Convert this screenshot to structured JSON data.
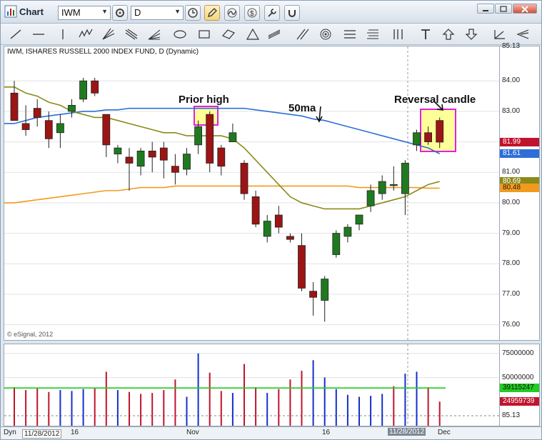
{
  "window": {
    "title": "Chart"
  },
  "toolbar": {
    "symbol_value": "IWM",
    "interval_value": "D"
  },
  "chart_header": "IWM, ISHARES RUSSELL 2000 INDEX FUND, D (Dynamic)",
  "copyright": "© eSignal, 2012",
  "price_axis": {
    "ticks": [
      "85.13",
      "84.00",
      "83.00",
      "81.00",
      "80.00",
      "79.00",
      "78.00",
      "77.00",
      "76.00"
    ],
    "tags": [
      {
        "text": "81.99",
        "color": "#c0142c",
        "textcolor": "#ffffff"
      },
      {
        "text": "81.61",
        "color": "#2d6fd6",
        "textcolor": "#ffffff"
      },
      {
        "text": "80.69",
        "color": "#8a8a1a",
        "textcolor": "#ffffff"
      },
      {
        "text": "80.48",
        "color": "#f29a1e",
        "textcolor": "#222222"
      }
    ]
  },
  "volume_axis": {
    "ticks": [
      "75000000",
      "50000000"
    ],
    "tags": [
      {
        "text": "39115247",
        "color": "#22cc22",
        "textcolor": "#111111"
      },
      {
        "text": "24959739",
        "color": "#c0142c",
        "textcolor": "#ffffff"
      }
    ],
    "bottom": "85.13"
  },
  "time_axis": {
    "left_label": "Dyn",
    "left_date": "11/28/2012",
    "labels": [
      "16",
      "Nov",
      "16",
      "Dec"
    ],
    "cursor_date": "11/28/2012"
  },
  "annotations": {
    "prior_high": "Prior high",
    "ma50": "50ma",
    "reversal": "Reversal candle"
  },
  "colors": {
    "up": "#1f7a1f",
    "down": "#9c1414",
    "ma_short": "#8a8a1a",
    "ma_50": "#2d6fd6",
    "ma_long": "#f29a1e",
    "highlight_fill": "#ffff99",
    "highlight_border": "#e020e0"
  },
  "chart_data": {
    "type": "candlestick",
    "ylim": [
      75.5,
      85.13
    ],
    "candles": [
      {
        "o": 83.6,
        "h": 84.0,
        "l": 82.7,
        "c": 82.7
      },
      {
        "o": 82.6,
        "h": 83.2,
        "l": 82.2,
        "c": 82.4
      },
      {
        "o": 83.1,
        "h": 83.4,
        "l": 82.5,
        "c": 82.8
      },
      {
        "o": 82.7,
        "h": 83.0,
        "l": 81.8,
        "c": 82.1
      },
      {
        "o": 82.3,
        "h": 82.9,
        "l": 81.8,
        "c": 82.6
      },
      {
        "o": 83.0,
        "h": 83.4,
        "l": 82.8,
        "c": 83.2
      },
      {
        "o": 83.4,
        "h": 84.1,
        "l": 83.3,
        "c": 84.0
      },
      {
        "o": 84.0,
        "h": 84.1,
        "l": 83.5,
        "c": 83.6
      },
      {
        "o": 82.9,
        "h": 82.9,
        "l": 81.5,
        "c": 81.9
      },
      {
        "o": 81.6,
        "h": 81.9,
        "l": 81.3,
        "c": 81.8
      },
      {
        "o": 81.5,
        "h": 81.8,
        "l": 80.4,
        "c": 81.3
      },
      {
        "o": 81.2,
        "h": 81.8,
        "l": 80.9,
        "c": 81.7
      },
      {
        "o": 81.7,
        "h": 82.0,
        "l": 81.0,
        "c": 81.5
      },
      {
        "o": 81.8,
        "h": 82.0,
        "l": 80.8,
        "c": 81.4
      },
      {
        "o": 81.2,
        "h": 81.6,
        "l": 80.6,
        "c": 81.0
      },
      {
        "o": 81.1,
        "h": 81.8,
        "l": 80.9,
        "c": 81.6
      },
      {
        "o": 81.9,
        "h": 82.7,
        "l": 81.6,
        "c": 82.5
      },
      {
        "o": 82.9,
        "h": 83.0,
        "l": 81.0,
        "c": 81.3
      },
      {
        "o": 81.8,
        "h": 81.9,
        "l": 80.9,
        "c": 81.2
      },
      {
        "o": 82.0,
        "h": 82.6,
        "l": 82.0,
        "c": 82.3
      },
      {
        "o": 81.3,
        "h": 81.4,
        "l": 80.1,
        "c": 80.3
      },
      {
        "o": 80.2,
        "h": 80.4,
        "l": 79.2,
        "c": 79.3
      },
      {
        "o": 78.9,
        "h": 79.6,
        "l": 78.7,
        "c": 79.4
      },
      {
        "o": 79.6,
        "h": 79.9,
        "l": 79.0,
        "c": 79.2
      },
      {
        "o": 78.9,
        "h": 79.0,
        "l": 78.7,
        "c": 78.8
      },
      {
        "o": 78.6,
        "h": 79.0,
        "l": 77.1,
        "c": 77.2
      },
      {
        "o": 77.1,
        "h": 77.4,
        "l": 76.3,
        "c": 76.9
      },
      {
        "o": 76.8,
        "h": 77.6,
        "l": 76.1,
        "c": 77.5
      },
      {
        "o": 78.3,
        "h": 79.1,
        "l": 78.2,
        "c": 79.0
      },
      {
        "o": 78.9,
        "h": 79.3,
        "l": 78.7,
        "c": 79.2
      },
      {
        "o": 79.3,
        "h": 79.6,
        "l": 79.1,
        "c": 79.6
      },
      {
        "o": 79.9,
        "h": 80.6,
        "l": 79.7,
        "c": 80.4
      },
      {
        "o": 80.3,
        "h": 80.9,
        "l": 80.1,
        "c": 80.7
      },
      {
        "o": 80.6,
        "h": 81.2,
        "l": 80.4,
        "c": 80.6
      },
      {
        "o": 80.3,
        "h": 81.4,
        "l": 79.6,
        "c": 81.3
      },
      {
        "o": 81.9,
        "h": 82.4,
        "l": 81.7,
        "c": 82.3
      },
      {
        "o": 82.3,
        "h": 82.5,
        "l": 81.9,
        "c": 82.0
      },
      {
        "o": 82.7,
        "h": 82.8,
        "l": 81.8,
        "c": 81.99
      }
    ],
    "ma_short": [
      83.8,
      83.6,
      83.5,
      83.3,
      83.2,
      83.0,
      82.9,
      82.8,
      82.8,
      82.7,
      82.6,
      82.5,
      82.4,
      82.3,
      82.3,
      82.2,
      82.2,
      82.2,
      82.2,
      82.1,
      81.8,
      81.4,
      81.0,
      80.6,
      80.2,
      80.0,
      79.9,
      79.8,
      79.8,
      79.8,
      79.8,
      79.9,
      80.0,
      80.1,
      80.2,
      80.4,
      80.6,
      80.7
    ],
    "ma_50": [
      82.6,
      82.7,
      82.8,
      82.85,
      82.9,
      82.95,
      83.0,
      83.0,
      83.05,
      83.05,
      83.1,
      83.1,
      83.1,
      83.1,
      83.1,
      83.1,
      83.1,
      83.1,
      83.1,
      83.1,
      83.1,
      83.05,
      83.0,
      82.95,
      82.9,
      82.85,
      82.75,
      82.7,
      82.6,
      82.5,
      82.4,
      82.3,
      82.2,
      82.1,
      82.0,
      81.9,
      81.8,
      81.61
    ],
    "ma_long": [
      80.0,
      80.05,
      80.1,
      80.15,
      80.2,
      80.25,
      80.3,
      80.35,
      80.4,
      80.4,
      80.45,
      80.5,
      80.5,
      80.5,
      80.55,
      80.55,
      80.55,
      80.55,
      80.55,
      80.55,
      80.55,
      80.55,
      80.55,
      80.55,
      80.55,
      80.55,
      80.55,
      80.55,
      80.55,
      80.55,
      80.5,
      80.5,
      80.5,
      80.5,
      80.5,
      80.5,
      80.48,
      80.48
    ],
    "volume": [
      {
        "v": 40,
        "c": "down"
      },
      {
        "v": 37,
        "c": "down"
      },
      {
        "v": 39,
        "c": "down"
      },
      {
        "v": 35,
        "c": "down"
      },
      {
        "v": 37,
        "c": "up"
      },
      {
        "v": 36,
        "c": "up"
      },
      {
        "v": 38,
        "c": "up"
      },
      {
        "v": 39,
        "c": "down"
      },
      {
        "v": 56,
        "c": "down"
      },
      {
        "v": 37,
        "c": "up"
      },
      {
        "v": 35,
        "c": "down"
      },
      {
        "v": 33,
        "c": "down"
      },
      {
        "v": 34,
        "c": "down"
      },
      {
        "v": 37,
        "c": "down"
      },
      {
        "v": 48,
        "c": "down"
      },
      {
        "v": 30,
        "c": "up"
      },
      {
        "v": 75,
        "c": "up"
      },
      {
        "v": 55,
        "c": "down"
      },
      {
        "v": 36,
        "c": "down"
      },
      {
        "v": 34,
        "c": "up"
      },
      {
        "v": 64,
        "c": "down"
      },
      {
        "v": 40,
        "c": "down"
      },
      {
        "v": 34,
        "c": "up"
      },
      {
        "v": 38,
        "c": "down"
      },
      {
        "v": 48,
        "c": "down"
      },
      {
        "v": 57,
        "c": "down"
      },
      {
        "v": 68,
        "c": "up"
      },
      {
        "v": 50,
        "c": "up"
      },
      {
        "v": 38,
        "c": "up"
      },
      {
        "v": 32,
        "c": "up"
      },
      {
        "v": 30,
        "c": "up"
      },
      {
        "v": 31,
        "c": "up"
      },
      {
        "v": 33,
        "c": "up"
      },
      {
        "v": 41,
        "c": "down"
      },
      {
        "v": 54,
        "c": "up"
      },
      {
        "v": 56,
        "c": "up"
      },
      {
        "v": 40,
        "c": "down"
      },
      {
        "v": 25,
        "c": "down"
      }
    ],
    "volume_ma": 39.1,
    "volume_ylim": [
      0,
      80
    ]
  }
}
